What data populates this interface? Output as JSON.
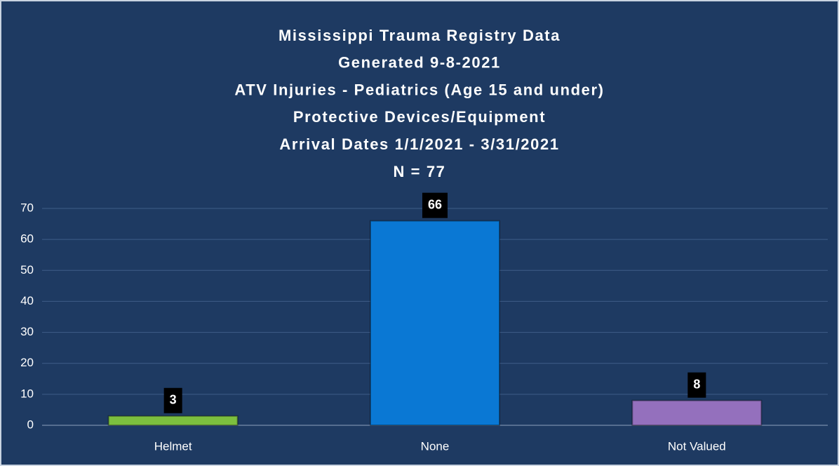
{
  "chart_data": {
    "type": "bar",
    "title": [
      "Mississippi Trauma Registry Data",
      "Generated  9-8-2021",
      "ATV Injuries - Pediatrics (Age 15 and under)",
      "Protective Devices/Equipment",
      "Arrival Dates 1/1/2021 - 3/31/2021",
      "N = 77"
    ],
    "categories": [
      "Helmet",
      "None",
      "Not Valued"
    ],
    "values": [
      3,
      66,
      8
    ],
    "colors": [
      "#7cbf3f",
      "#0a78d4",
      "#9470bd"
    ],
    "ylim": [
      0,
      70
    ],
    "yticks": [
      0,
      10,
      20,
      30,
      40,
      50,
      60,
      70
    ],
    "grid": true
  }
}
